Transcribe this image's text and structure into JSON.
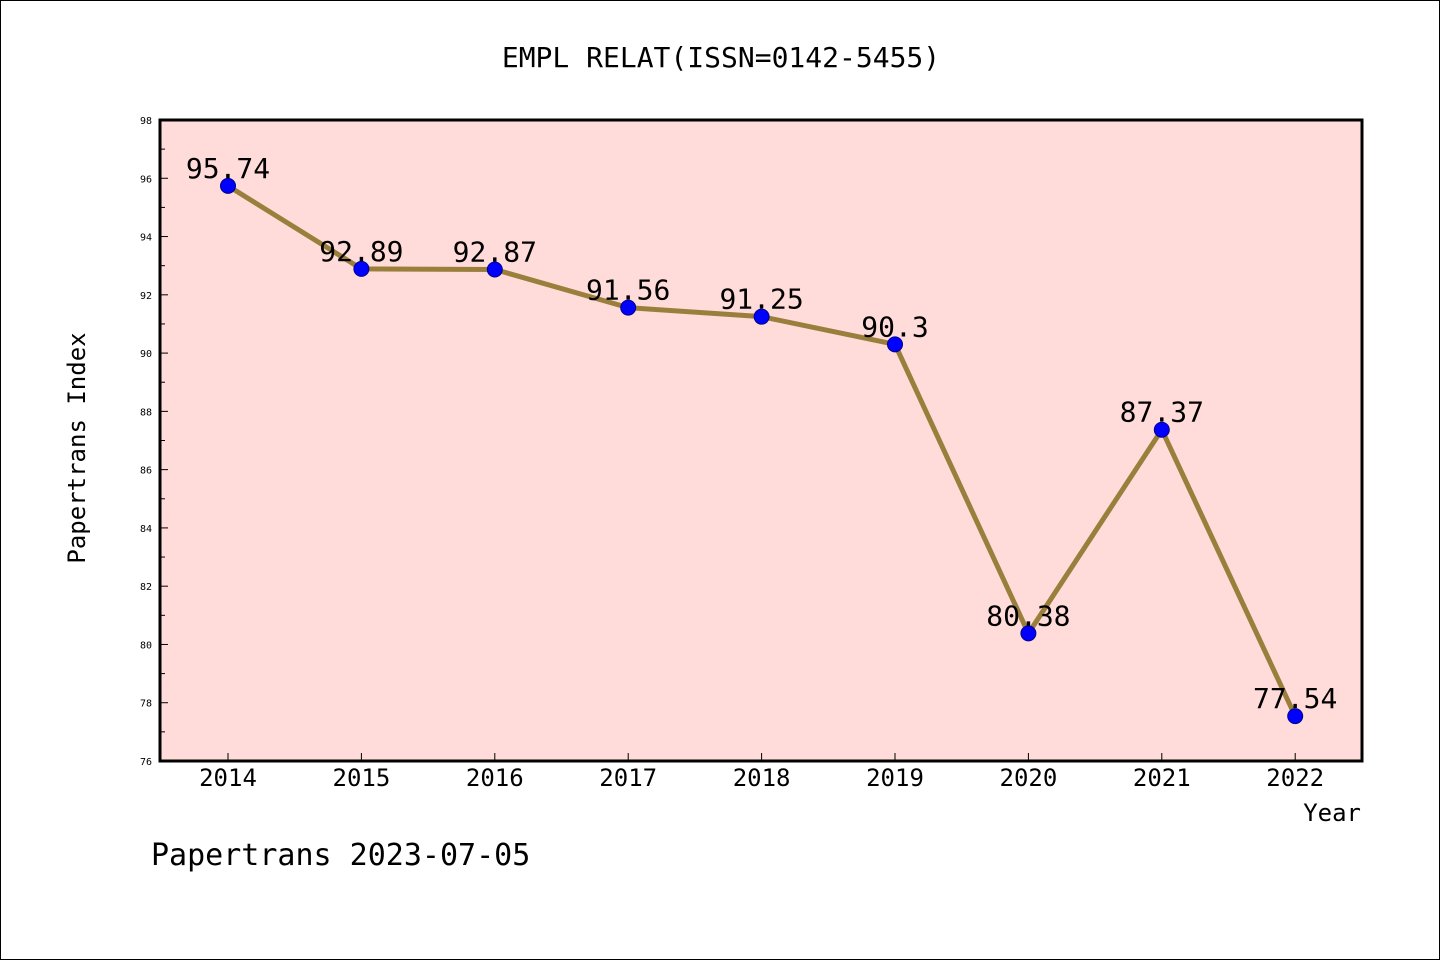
{
  "chart_data": {
    "type": "line",
    "title": "EMPL RELAT(ISSN=0142-5455)",
    "xlabel": "Year",
    "ylabel": "Papertrans Index",
    "categories": [
      "2014",
      "2015",
      "2016",
      "2017",
      "2018",
      "2019",
      "2020",
      "2021",
      "2022"
    ],
    "values": [
      95.74,
      92.89,
      92.87,
      91.56,
      91.25,
      90.3,
      80.38,
      87.37,
      77.54
    ],
    "data_labels": [
      "95.74",
      "92.89",
      "92.87",
      "91.56",
      "91.25",
      "90.3",
      "80.38",
      "87.37",
      "77.54"
    ],
    "ylim": [
      76,
      98
    ],
    "yticks": [
      "76",
      "78",
      "80",
      "82",
      "84",
      "86",
      "88",
      "90",
      "92",
      "94",
      "96",
      "98"
    ],
    "grid": false,
    "footer": "Papertrans 2023-07-05",
    "colors": {
      "plot_background": "#ffdcd9",
      "line": "#9a7f3c",
      "marker": "#0000ff",
      "marker_edge": "#00008b",
      "axes": "#000000"
    }
  }
}
